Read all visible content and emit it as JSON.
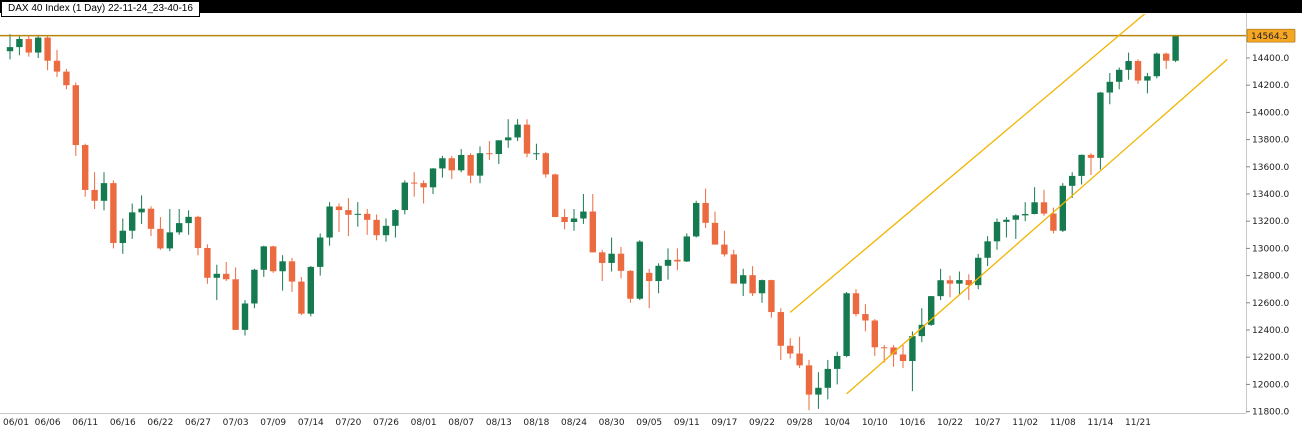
{
  "window": {
    "title": "DAX 40 Index (1 Day) 22-11-24_23-40-16"
  },
  "chart_data": {
    "type": "candlestick",
    "title": "DAX 40 Index (1 Day) 22-11-24_23-40-16",
    "symbol": "DAX 40 Index",
    "timeframe": "1 Day",
    "grid": false,
    "legend_position": "none",
    "x_tick_labels": [
      "06/01",
      "06/06",
      "06/11",
      "06/16",
      "06/22",
      "06/27",
      "07/03",
      "07/09",
      "07/14",
      "07/20",
      "07/26",
      "08/01",
      "08/07",
      "08/13",
      "08/18",
      "08/24",
      "08/30",
      "09/05",
      "09/11",
      "09/17",
      "09/22",
      "09/28",
      "10/04",
      "10/10",
      "10/16",
      "10/22",
      "10/27",
      "11/02",
      "11/08",
      "11/14",
      "11/21"
    ],
    "x_label_every_n_bars": 4,
    "y_ticks": [
      14400,
      14200,
      14000,
      13800,
      13600,
      13400,
      13200,
      13000,
      12800,
      12600,
      12400,
      12200,
      12000,
      11800
    ],
    "y_tick_labels": [
      "14400.0",
      "14200.0",
      "14000.0",
      "13800.0",
      "13600.0",
      "13400.0",
      "13200.0",
      "13000.0",
      "12800.0",
      "12600.0",
      "12400.0",
      "12200.0",
      "12000.0",
      "11800.0"
    ],
    "ylim": [
      11790,
      14720
    ],
    "current_price": {
      "price": 14564.5,
      "label": "14564.5"
    },
    "horizontal_line": {
      "price": 14564.5
    },
    "trend_channel": [
      {
        "from": {
          "bar": 83,
          "price": 12530
        },
        "to": {
          "bar": 122,
          "price": 14800
        }
      },
      {
        "from": {
          "bar": 89,
          "price": 11930
        },
        "to": {
          "bar": 129.5,
          "price": 14390
        }
      }
    ],
    "colors": {
      "up": "#157a4f",
      "down": "#ec6a3f",
      "channel": "#f2b400",
      "hline": "#b8860b",
      "badge_bg": "#f5a623",
      "badge_border": "#8a6200",
      "badge_text": "#000000",
      "axis_text": "#222222",
      "axis_line": "#c8c8c8"
    },
    "candles": [
      [
        14450,
        14575,
        14390,
        14480
      ],
      [
        14480,
        14560,
        14420,
        14540
      ],
      [
        14540,
        14565,
        14410,
        14440
      ],
      [
        14440,
        14570,
        14400,
        14550
      ],
      [
        14550,
        14560,
        14310,
        14380
      ],
      [
        14380,
        14460,
        14260,
        14300
      ],
      [
        14300,
        14320,
        14170,
        14200
      ],
      [
        14200,
        14220,
        13680,
        13760
      ],
      [
        13760,
        13770,
        13380,
        13430
      ],
      [
        13430,
        13560,
        13290,
        13350
      ],
      [
        13350,
        13560,
        13280,
        13480
      ],
      [
        13480,
        13500,
        13000,
        13040
      ],
      [
        13040,
        13220,
        12960,
        13130
      ],
      [
        13130,
        13330,
        13070,
        13265
      ],
      [
        13265,
        13390,
        13180,
        13292
      ],
      [
        13292,
        13310,
        13090,
        13144
      ],
      [
        13144,
        13230,
        12990,
        13000
      ],
      [
        13000,
        13290,
        12980,
        13118
      ],
      [
        13118,
        13290,
        13100,
        13186
      ],
      [
        13186,
        13280,
        13100,
        13232
      ],
      [
        13232,
        13240,
        12950,
        13003
      ],
      [
        13003,
        13030,
        12740,
        12784
      ],
      [
        12784,
        12880,
        12620,
        12813
      ],
      [
        12813,
        12900,
        12760,
        12773
      ],
      [
        12773,
        12860,
        12400,
        12401
      ],
      [
        12401,
        12620,
        12360,
        12595
      ],
      [
        12595,
        12850,
        12560,
        12843
      ],
      [
        12843,
        13020,
        12790,
        13015
      ],
      [
        13015,
        13020,
        12820,
        12832
      ],
      [
        12832,
        12950,
        12690,
        12905
      ],
      [
        12905,
        12930,
        12680,
        12756
      ],
      [
        12756,
        12790,
        12510,
        12520
      ],
      [
        12520,
        12870,
        12500,
        12864
      ],
      [
        12864,
        13110,
        12800,
        13080
      ],
      [
        13080,
        13340,
        13020,
        13308
      ],
      [
        13308,
        13330,
        13120,
        13282
      ],
      [
        13282,
        13370,
        13090,
        13247
      ],
      [
        13247,
        13340,
        13160,
        13254
      ],
      [
        13254,
        13290,
        13100,
        13210
      ],
      [
        13210,
        13250,
        13060,
        13097
      ],
      [
        13097,
        13220,
        13050,
        13166
      ],
      [
        13166,
        13290,
        13080,
        13282
      ],
      [
        13282,
        13500,
        13250,
        13484
      ],
      [
        13484,
        13560,
        13380,
        13480
      ],
      [
        13480,
        13500,
        13330,
        13449
      ],
      [
        13449,
        13590,
        13400,
        13588
      ],
      [
        13588,
        13680,
        13520,
        13663
      ],
      [
        13663,
        13680,
        13510,
        13574
      ],
      [
        13574,
        13730,
        13560,
        13687
      ],
      [
        13687,
        13700,
        13480,
        13535
      ],
      [
        13535,
        13750,
        13480,
        13700
      ],
      [
        13700,
        13790,
        13650,
        13694
      ],
      [
        13694,
        13795,
        13620,
        13795
      ],
      [
        13795,
        13950,
        13740,
        13816
      ],
      [
        13816,
        13950,
        13790,
        13910
      ],
      [
        13910,
        13950,
        13670,
        13697
      ],
      [
        13697,
        13770,
        13650,
        13700
      ],
      [
        13700,
        13710,
        13520,
        13544
      ],
      [
        13544,
        13550,
        13230,
        13231
      ],
      [
        13231,
        13290,
        13140,
        13194
      ],
      [
        13194,
        13290,
        13130,
        13220
      ],
      [
        13220,
        13400,
        13180,
        13271
      ],
      [
        13271,
        13400,
        12970,
        12971
      ],
      [
        12971,
        12990,
        12760,
        12893
      ],
      [
        12893,
        13080,
        12830,
        12961
      ],
      [
        12961,
        13010,
        12780,
        12835
      ],
      [
        12835,
        12840,
        12600,
        12630
      ],
      [
        12630,
        13060,
        12620,
        13050
      ],
      [
        12820,
        12850,
        12560,
        12760
      ],
      [
        12760,
        12890,
        12670,
        12872
      ],
      [
        12872,
        13000,
        12770,
        12916
      ],
      [
        12916,
        13000,
        12840,
        12904
      ],
      [
        12904,
        13110,
        12900,
        13088
      ],
      [
        13088,
        13350,
        13080,
        13334
      ],
      [
        13334,
        13440,
        13150,
        13188
      ],
      [
        13188,
        13270,
        13030,
        13028
      ],
      [
        13028,
        13130,
        12940,
        12956
      ],
      [
        12956,
        12990,
        12760,
        12741
      ],
      [
        12741,
        12850,
        12650,
        12803
      ],
      [
        12803,
        12870,
        12650,
        12670
      ],
      [
        12670,
        12770,
        12600,
        12767
      ],
      [
        12767,
        12770,
        12490,
        12532
      ],
      [
        12532,
        12560,
        12180,
        12284
      ],
      [
        12284,
        12340,
        12190,
        12227
      ],
      [
        12227,
        12350,
        12120,
        12140
      ],
      [
        12140,
        12180,
        11810,
        11925
      ],
      [
        11925,
        12090,
        11820,
        11975
      ],
      [
        11975,
        12180,
        11890,
        12114
      ],
      [
        12114,
        12240,
        12000,
        12209
      ],
      [
        12209,
        12680,
        12200,
        12670
      ],
      [
        12670,
        12700,
        12500,
        12517
      ],
      [
        12517,
        12590,
        12390,
        12470
      ],
      [
        12470,
        12480,
        12210,
        12273
      ],
      [
        12273,
        12290,
        12160,
        12272
      ],
      [
        12272,
        12290,
        12130,
        12220
      ],
      [
        12220,
        12290,
        12120,
        12172
      ],
      [
        12172,
        12390,
        11950,
        12355
      ],
      [
        12355,
        12560,
        12310,
        12438
      ],
      [
        12438,
        12650,
        12430,
        12649
      ],
      [
        12649,
        12850,
        12620,
        12766
      ],
      [
        12766,
        12800,
        12640,
        12741
      ],
      [
        12741,
        12830,
        12660,
        12767
      ],
      [
        12767,
        12810,
        12620,
        12730
      ],
      [
        12730,
        12960,
        12700,
        12931
      ],
      [
        12931,
        13090,
        12870,
        13052
      ],
      [
        13052,
        13220,
        12990,
        13195
      ],
      [
        13195,
        13230,
        13080,
        13211
      ],
      [
        13211,
        13250,
        13070,
        13243
      ],
      [
        13243,
        13340,
        13200,
        13253
      ],
      [
        13253,
        13450,
        13250,
        13339
      ],
      [
        13339,
        13430,
        13240,
        13256
      ],
      [
        13256,
        13300,
        13110,
        13130
      ],
      [
        13130,
        13480,
        13120,
        13460
      ],
      [
        13460,
        13560,
        13370,
        13533
      ],
      [
        13533,
        13690,
        13470,
        13688
      ],
      [
        13688,
        13700,
        13540,
        13666
      ],
      [
        13666,
        14150,
        13580,
        14146
      ],
      [
        14146,
        14290,
        14060,
        14225
      ],
      [
        14225,
        14330,
        14170,
        14313
      ],
      [
        14313,
        14440,
        14240,
        14378
      ],
      [
        14378,
        14390,
        14210,
        14234
      ],
      [
        14234,
        14290,
        14140,
        14266
      ],
      [
        14266,
        14440,
        14250,
        14432
      ],
      [
        14432,
        14440,
        14320,
        14380
      ],
      [
        14380,
        14570,
        14370,
        14564.5
      ]
    ]
  }
}
